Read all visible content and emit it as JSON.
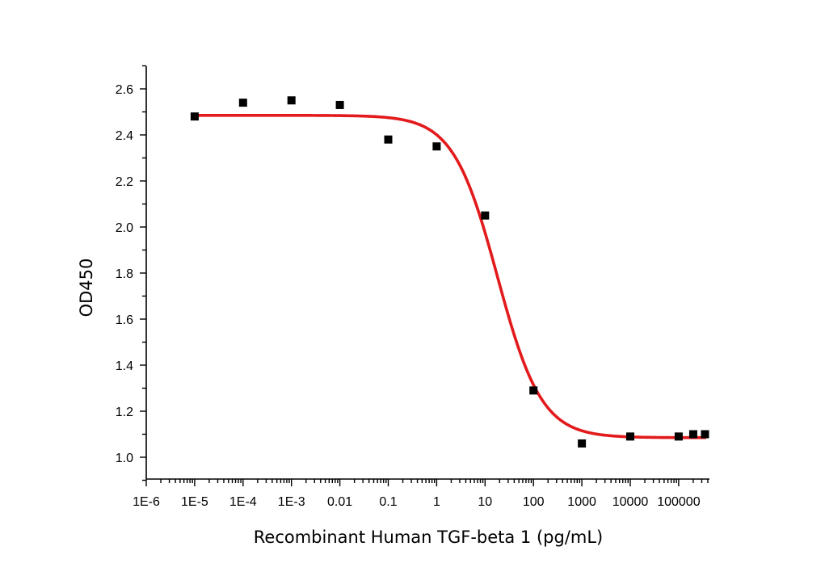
{
  "chart_data": {
    "type": "scatter",
    "title": "",
    "xlabel": "Recombinant Human TGF-beta 1 (pg/mL)",
    "ylabel": "OD450",
    "x_scale": "log",
    "xlim": [
      1e-06,
      400000
    ],
    "ylim": [
      0.9,
      2.72
    ],
    "x_ticks": [
      1e-06,
      1e-05,
      0.0001,
      0.001,
      0.01,
      0.1,
      1,
      10,
      100,
      1000,
      10000,
      100000
    ],
    "x_tick_labels": [
      "1E-6",
      "1E-5",
      "1E-4",
      "1E-3",
      "0.01",
      "0.1",
      "1",
      "10",
      "100",
      "1000",
      "10000",
      "100000"
    ],
    "y_ticks": [
      1.0,
      1.2,
      1.4,
      1.6,
      1.8,
      2.0,
      2.2,
      2.4,
      2.6
    ],
    "y_tick_labels": [
      "1.0",
      "1.2",
      "1.4",
      "1.6",
      "1.8",
      "2.0",
      "2.2",
      "2.4",
      "2.6"
    ],
    "grid": false,
    "legend": "none",
    "series": [
      {
        "kind": "points",
        "marker": "square",
        "color": "#000000",
        "x": [
          1e-05,
          0.0001,
          0.001,
          0.01,
          0.1,
          1,
          10,
          100,
          1000,
          10000,
          100000,
          200000,
          350000
        ],
        "y": [
          2.48,
          2.54,
          2.55,
          2.53,
          2.38,
          2.35,
          2.05,
          1.29,
          1.06,
          1.09,
          1.09,
          1.1,
          1.1
        ]
      },
      {
        "kind": "fit",
        "model": "4PL",
        "color": "#e31a1c",
        "top": 2.485,
        "bottom": 1.085,
        "ec50": 18,
        "hill": 0.95,
        "x_range": [
          1e-05,
          350000
        ]
      }
    ]
  }
}
